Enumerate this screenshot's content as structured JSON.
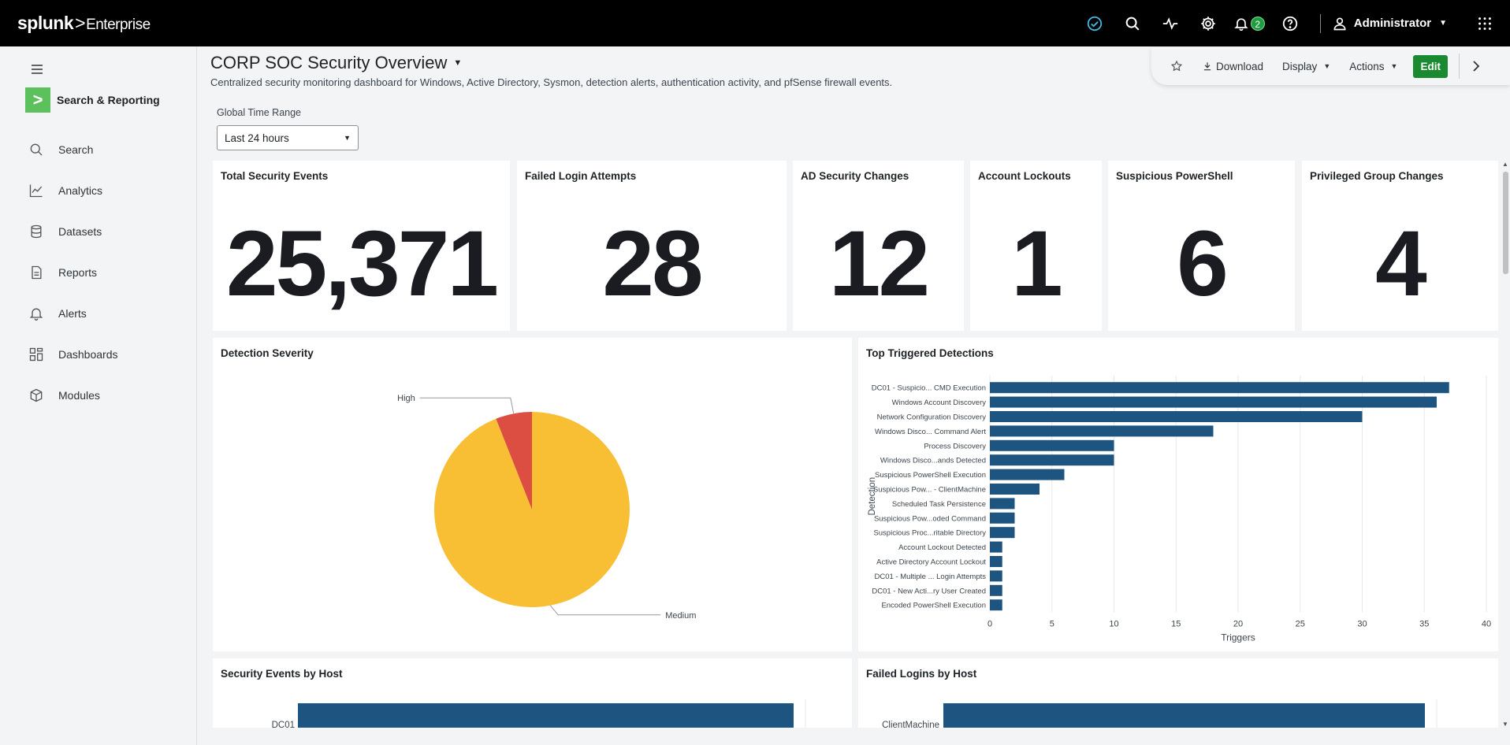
{
  "topbar": {
    "brand": "splunk",
    "brand_sep": ">",
    "product": "Enterprise",
    "notification_count": "2",
    "user": "Administrator"
  },
  "sidebar": {
    "app_title": "Search & Reporting",
    "items": [
      {
        "label": "Search",
        "icon": "search-icon"
      },
      {
        "label": "Analytics",
        "icon": "analytics-icon"
      },
      {
        "label": "Datasets",
        "icon": "datasets-icon"
      },
      {
        "label": "Reports",
        "icon": "reports-icon"
      },
      {
        "label": "Alerts",
        "icon": "alerts-icon"
      },
      {
        "label": "Dashboards",
        "icon": "dashboards-icon"
      },
      {
        "label": "Modules",
        "icon": "modules-icon"
      }
    ]
  },
  "dashboard": {
    "title": "CORP SOC Security Overview",
    "description": "Centralized security monitoring dashboard for Windows, Active Directory, Sysmon, detection alerts, authentication activity, and pfSense firewall events."
  },
  "toolbar": {
    "download": "Download",
    "display": "Display",
    "actions": "Actions",
    "edit": "Edit"
  },
  "time_range": {
    "label": "Global Time Range",
    "value": "Last 24 hours"
  },
  "kpis": [
    {
      "title": "Total Security Events",
      "value": "25,371"
    },
    {
      "title": "Failed Login Attempts",
      "value": "28"
    },
    {
      "title": "AD Security Changes",
      "value": "12"
    },
    {
      "title": "Account Lockouts",
      "value": "1"
    },
    {
      "title": "Suspicious PowerShell",
      "value": "6"
    },
    {
      "title": "Privileged Group Changes",
      "value": "4"
    }
  ],
  "panels": {
    "severity_title": "Detection Severity",
    "detections_title": "Top Triggered Detections",
    "events_host_title": "Security Events by Host",
    "failed_host_title": "Failed Logins by Host"
  },
  "colors": {
    "accent_green": "#1a8a30",
    "bar": "#1e5480",
    "pie_high": "#dc4e41",
    "pie_medium": "#f8be34"
  },
  "chart_data": [
    {
      "type": "pie",
      "slices": [
        {
          "label": "High",
          "value": 6
        },
        {
          "label": "Medium",
          "value": 94
        }
      ]
    },
    {
      "type": "bar",
      "orientation": "horizontal",
      "xlabel": "Triggers",
      "ylabel": "Detection",
      "xlim": [
        0,
        40
      ],
      "xticks": [
        0,
        5,
        10,
        15,
        20,
        25,
        30,
        35,
        40
      ],
      "categories": [
        "DC01 - Suspicio... CMD Execution",
        "Windows Account Discovery",
        "Network Configuration Discovery",
        "Windows Disco... Command Alert",
        "Process Discovery",
        "Windows Disco...ands Detected",
        "Suspicious PowerShell Execution",
        "Suspicious Pow... - ClientMachine",
        "Scheduled Task Persistence",
        "Suspicious Pow...oded Command",
        "Suspicious Proc...ritable Directory",
        "Account Lockout Detected",
        "Active Directory Account Lockout",
        "DC01 - Multiple ... Login Attempts",
        "DC01 - New Acti...ry User Created",
        "Encoded PowerShell Execution"
      ],
      "values": [
        37,
        36,
        30,
        18,
        10,
        10,
        6,
        4,
        2,
        2,
        2,
        1,
        1,
        1,
        1,
        1
      ]
    },
    {
      "type": "bar",
      "orientation": "horizontal",
      "categories": [
        "DC01"
      ],
      "values": [
        100
      ]
    },
    {
      "type": "bar",
      "orientation": "horizontal",
      "categories": [
        "ClientMachine"
      ],
      "values": [
        100
      ]
    }
  ]
}
